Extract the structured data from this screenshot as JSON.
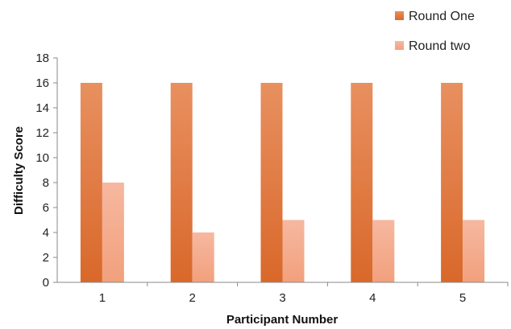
{
  "chart_data": {
    "type": "bar",
    "categories": [
      "1",
      "2",
      "3",
      "4",
      "5"
    ],
    "series": [
      {
        "name": "Round One",
        "values": [
          16,
          16,
          16,
          16,
          16
        ],
        "color": "#e07b3c"
      },
      {
        "name": "Round two",
        "values": [
          8,
          4,
          5,
          5,
          5
        ],
        "color": "#f4a98a"
      }
    ],
    "title": "",
    "xlabel": "Participant Number",
    "ylabel": "Difficulty Score",
    "ylim": [
      0,
      18
    ],
    "yticks": [
      0,
      2,
      4,
      6,
      8,
      10,
      12,
      14,
      16,
      18
    ],
    "grid": false,
    "legend_position": "top-right"
  }
}
